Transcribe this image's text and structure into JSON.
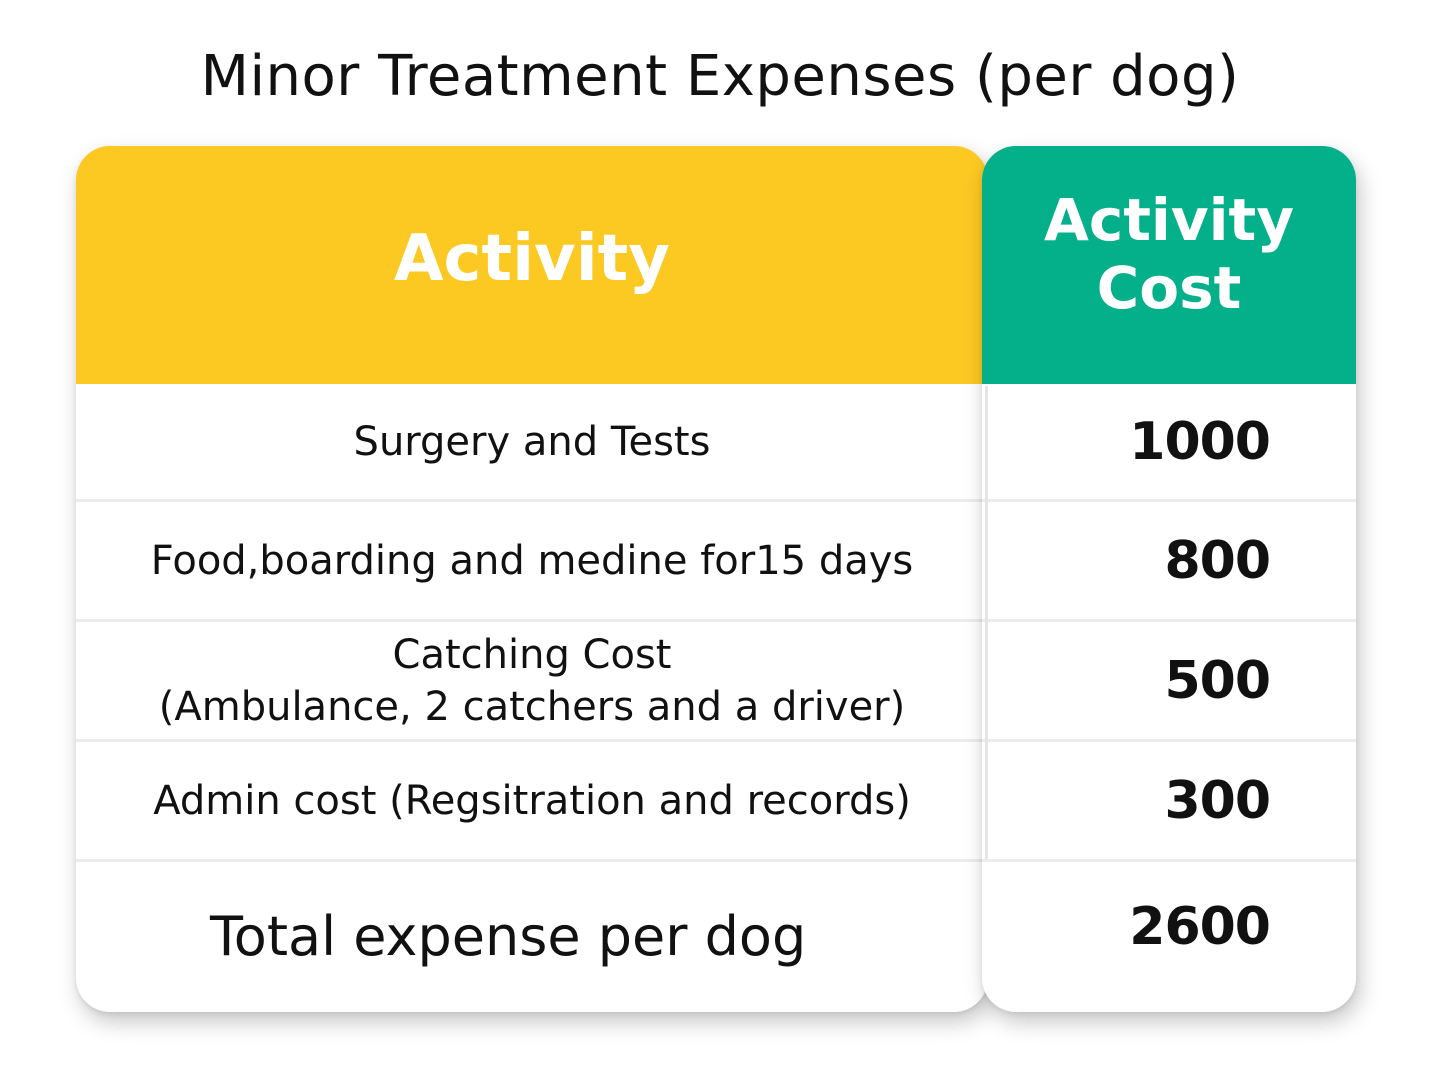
{
  "title": "Minor Treatment Expenses (per dog)",
  "colors": {
    "activity_header": "#fcc822",
    "cost_header": "#04b089"
  },
  "headers": {
    "activity": "Activity",
    "cost_line1": "Activity",
    "cost_line2": "Cost"
  },
  "rows": [
    {
      "activity": "Surgery and Tests",
      "cost": "1000"
    },
    {
      "activity": "Food,boarding and medine for15 days",
      "cost": "800"
    },
    {
      "activity_line1": "Catching Cost",
      "activity_line2": "(Ambulance, 2 catchers and a driver)",
      "cost": "500"
    },
    {
      "activity": "Admin cost (Regsitration and records)",
      "cost": "300"
    }
  ],
  "total": {
    "label": "Total expense per dog",
    "cost": "2600"
  }
}
